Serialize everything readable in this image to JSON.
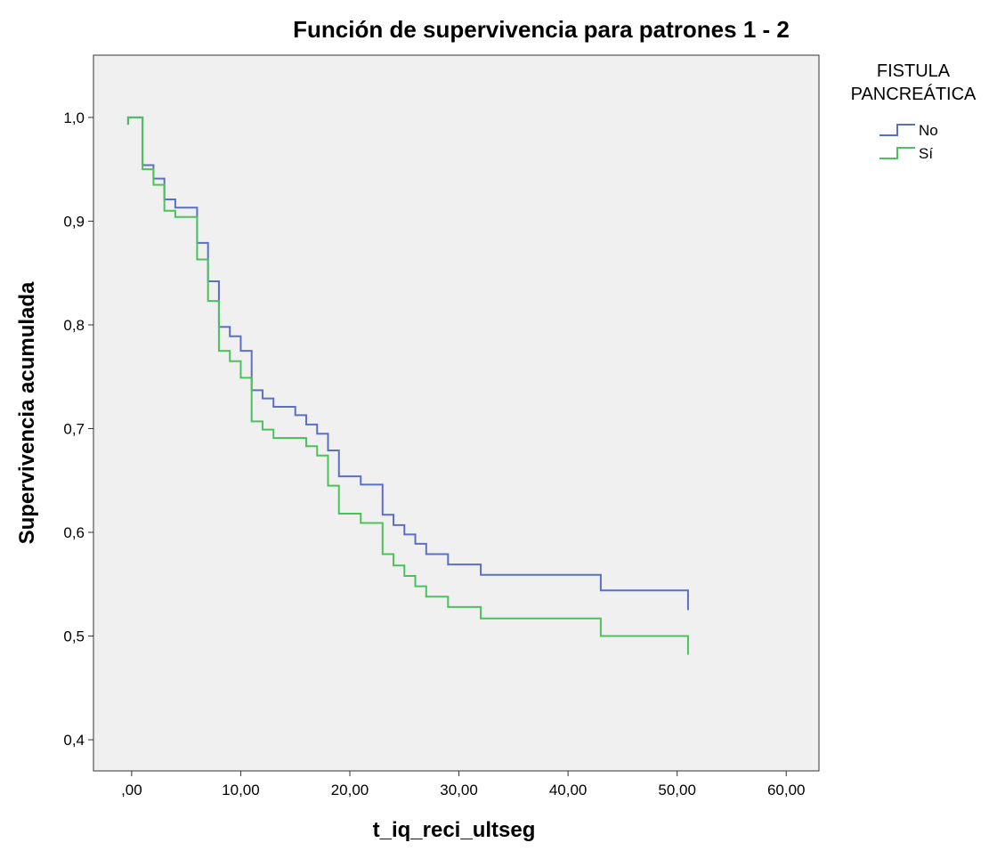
{
  "chart_data": {
    "type": "line",
    "title": "Función de supervivencia para patrones 1 - 2",
    "xlabel": "t_iq_reci_ultseg",
    "ylabel": "Supervivencia acumulada",
    "xlim": [
      -3.5,
      63
    ],
    "ylim": [
      0.37,
      1.06
    ],
    "x_ticks": [
      0,
      10,
      20,
      30,
      40,
      50,
      60
    ],
    "x_tick_labels": [
      ",00",
      "10,00",
      "20,00",
      "30,00",
      "40,00",
      "50,00",
      "60,00"
    ],
    "y_ticks": [
      0.4,
      0.5,
      0.6,
      0.7,
      0.8,
      0.9,
      1.0
    ],
    "y_tick_labels": [
      "0,4",
      "0,5",
      "0,6",
      "0,7",
      "0,8",
      "0,9",
      "1,0"
    ],
    "grid": false,
    "plot_background": "#f0f0f0",
    "legend": {
      "title_lines": [
        "FISTULA",
        "PANCREÁTICA"
      ],
      "position": "right"
    },
    "series": [
      {
        "name": "No",
        "color": "#5b6fc4",
        "steps": [
          [
            0,
            1.0
          ],
          [
            1,
            0.954
          ],
          [
            2,
            0.941
          ],
          [
            3,
            0.921
          ],
          [
            4,
            0.913
          ],
          [
            6,
            0.913
          ],
          [
            6,
            0.879
          ],
          [
            7,
            0.842
          ],
          [
            8,
            0.798
          ],
          [
            9,
            0.789
          ],
          [
            10,
            0.775
          ],
          [
            11,
            0.737
          ],
          [
            12,
            0.729
          ],
          [
            13,
            0.721
          ],
          [
            15,
            0.713
          ],
          [
            16,
            0.704
          ],
          [
            17,
            0.695
          ],
          [
            18,
            0.679
          ],
          [
            19,
            0.654
          ],
          [
            21,
            0.646
          ],
          [
            23,
            0.617
          ],
          [
            24,
            0.607
          ],
          [
            25,
            0.598
          ],
          [
            26,
            0.589
          ],
          [
            27,
            0.579
          ],
          [
            29,
            0.569
          ],
          [
            32,
            0.559
          ],
          [
            43,
            0.544
          ],
          [
            51,
            0.544
          ]
        ],
        "end_drop": [
          51,
          0.525
        ]
      },
      {
        "name": "Sí",
        "color": "#4cc25c",
        "steps": [
          [
            0,
            1.0
          ],
          [
            1,
            0.95
          ],
          [
            2,
            0.935
          ],
          [
            3,
            0.91
          ],
          [
            4,
            0.904
          ],
          [
            6,
            0.904
          ],
          [
            6,
            0.863
          ],
          [
            7,
            0.823
          ],
          [
            8,
            0.775
          ],
          [
            9,
            0.765
          ],
          [
            10,
            0.749
          ],
          [
            11,
            0.707
          ],
          [
            12,
            0.699
          ],
          [
            13,
            0.691
          ],
          [
            16,
            0.683
          ],
          [
            17,
            0.674
          ],
          [
            18,
            0.664
          ],
          [
            18,
            0.645
          ],
          [
            19,
            0.618
          ],
          [
            21,
            0.609
          ],
          [
            23,
            0.579
          ],
          [
            24,
            0.568
          ],
          [
            25,
            0.558
          ],
          [
            26,
            0.548
          ],
          [
            27,
            0.538
          ],
          [
            29,
            0.528
          ],
          [
            32,
            0.517
          ],
          [
            43,
            0.5
          ],
          [
            51,
            0.5
          ]
        ],
        "end_drop": [
          51,
          0.482
        ]
      }
    ]
  }
}
